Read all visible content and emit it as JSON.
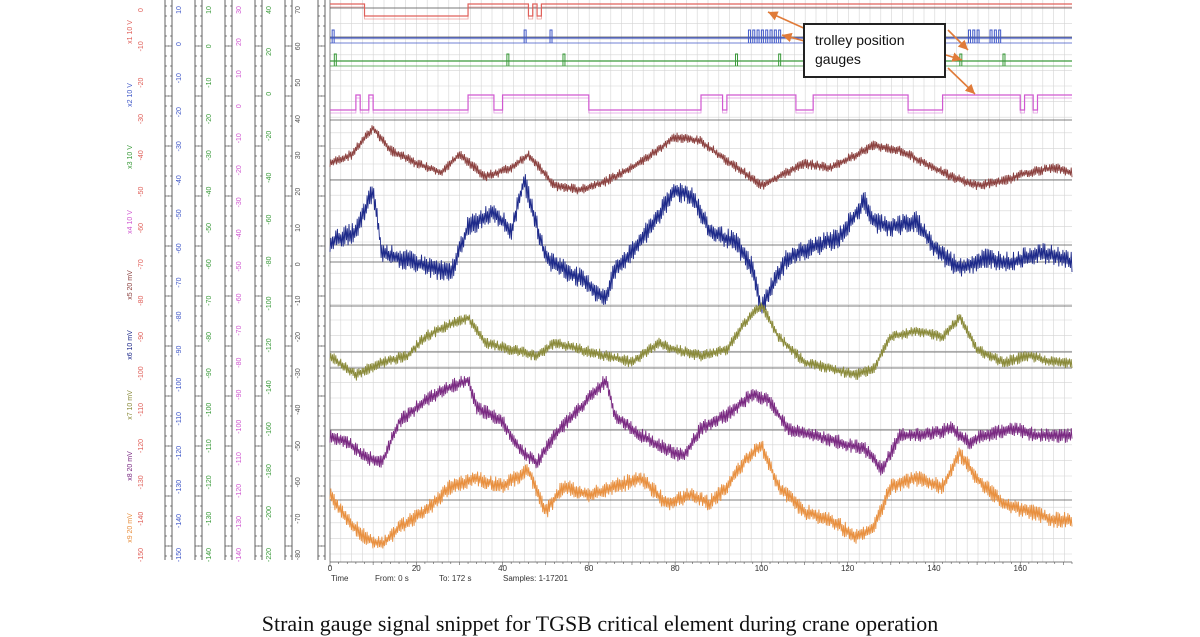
{
  "figure": {
    "callout_text": "trolley position gauges",
    "caption": "Strain gauge signal snippet for TGSB critical element during crane operation"
  },
  "footer": {
    "time_label": "Time",
    "from_label": "From: 0 s",
    "to_label": "To: 172 s",
    "samples_label": "Samples: 1-17201"
  },
  "colors": {
    "callout_arrow": "#e07b39",
    "grid": "#d4d4d4",
    "baseline": "#555555"
  },
  "chart_data": {
    "type": "line",
    "xlabel": "Time",
    "xlim": [
      0,
      172
    ],
    "x_ticks": [
      0,
      20,
      40,
      60,
      80,
      100,
      120,
      140,
      160
    ],
    "series": [
      {
        "name": "x1",
        "unit": "10 V",
        "color": "#e0605a",
        "kind": "step",
        "points": [
          [
            0,
            1
          ],
          [
            8,
            1
          ],
          [
            8,
            0
          ],
          [
            32,
            0
          ],
          [
            32,
            1
          ],
          [
            46,
            1
          ],
          [
            46,
            0
          ],
          [
            47,
            0
          ],
          [
            47,
            1
          ],
          [
            48,
            1
          ],
          [
            48,
            0
          ],
          [
            49,
            0
          ],
          [
            49,
            1
          ],
          [
            172,
            1
          ]
        ]
      },
      {
        "name": "x2",
        "unit": "10 V",
        "color": "#4058c8",
        "kind": "pulses",
        "pulse_times": [
          0.5,
          45,
          51,
          97,
          98,
          99,
          100,
          101,
          102,
          103,
          104,
          148,
          149,
          150,
          153,
          154,
          155
        ]
      },
      {
        "name": "x3",
        "unit": "10 V",
        "color": "#3a9a3a",
        "kind": "pulses",
        "pulse_times": [
          1,
          41,
          54,
          94,
          104,
          146,
          156
        ]
      },
      {
        "name": "x4",
        "unit": "10 V",
        "color": "#d058d0",
        "kind": "step",
        "points": [
          [
            0,
            0
          ],
          [
            6,
            0
          ],
          [
            6,
            1
          ],
          [
            7,
            0
          ],
          [
            9,
            0
          ],
          [
            9,
            1
          ],
          [
            10,
            0
          ],
          [
            32,
            0
          ],
          [
            32,
            1
          ],
          [
            38,
            1
          ],
          [
            38,
            0
          ],
          [
            40,
            0
          ],
          [
            40,
            1
          ],
          [
            60,
            1
          ],
          [
            60,
            0
          ],
          [
            86,
            0
          ],
          [
            86,
            1
          ],
          [
            91,
            0
          ],
          [
            92,
            1
          ],
          [
            107,
            1
          ],
          [
            108,
            0
          ],
          [
            111,
            0
          ],
          [
            112,
            1
          ],
          [
            134,
            1
          ],
          [
            134,
            0
          ],
          [
            141,
            0
          ],
          [
            142,
            1
          ],
          [
            160,
            1
          ],
          [
            160,
            0
          ],
          [
            161,
            1
          ],
          [
            163,
            0
          ],
          [
            164,
            1
          ],
          [
            172,
            1
          ]
        ]
      },
      {
        "name": "x5",
        "unit": "20 mV",
        "color": "#8c4240",
        "points": [
          [
            0,
            0
          ],
          [
            5,
            2
          ],
          [
            10,
            8
          ],
          [
            14,
            3
          ],
          [
            20,
            0
          ],
          [
            26,
            -2
          ],
          [
            30,
            2
          ],
          [
            36,
            -3
          ],
          [
            42,
            -1
          ],
          [
            46,
            2
          ],
          [
            52,
            -5
          ],
          [
            58,
            -6
          ],
          [
            64,
            -4
          ],
          [
            70,
            -1
          ],
          [
            76,
            3
          ],
          [
            80,
            6
          ],
          [
            86,
            5
          ],
          [
            90,
            2
          ],
          [
            96,
            -2
          ],
          [
            100,
            -5
          ],
          [
            104,
            -3
          ],
          [
            110,
            0
          ],
          [
            116,
            -1
          ],
          [
            120,
            1
          ],
          [
            126,
            4
          ],
          [
            132,
            3
          ],
          [
            138,
            0
          ],
          [
            144,
            -3
          ],
          [
            150,
            -5
          ],
          [
            156,
            -4
          ],
          [
            162,
            -2
          ],
          [
            168,
            -1
          ],
          [
            172,
            -2
          ]
        ]
      },
      {
        "name": "x6",
        "unit": "10 mV",
        "color": "#1e2a8a",
        "points": [
          [
            0,
            0
          ],
          [
            6,
            2
          ],
          [
            10,
            10
          ],
          [
            12,
            -2
          ],
          [
            20,
            -4
          ],
          [
            28,
            -6
          ],
          [
            32,
            3
          ],
          [
            38,
            6
          ],
          [
            42,
            2
          ],
          [
            45,
            12
          ],
          [
            50,
            -3
          ],
          [
            58,
            -7
          ],
          [
            64,
            -11
          ],
          [
            66,
            -5
          ],
          [
            70,
            -2
          ],
          [
            76,
            5
          ],
          [
            80,
            10
          ],
          [
            84,
            9
          ],
          [
            88,
            2
          ],
          [
            94,
            0
          ],
          [
            98,
            -5
          ],
          [
            100,
            -13
          ],
          [
            102,
            -9
          ],
          [
            106,
            -3
          ],
          [
            112,
            -1
          ],
          [
            118,
            1
          ],
          [
            124,
            8
          ],
          [
            126,
            4
          ],
          [
            130,
            3
          ],
          [
            136,
            4
          ],
          [
            140,
            -1
          ],
          [
            146,
            -5
          ],
          [
            152,
            -3
          ],
          [
            158,
            -4
          ],
          [
            164,
            -2
          ],
          [
            170,
            -3
          ],
          [
            172,
            -4
          ]
        ]
      },
      {
        "name": "x7",
        "unit": "10 mV",
        "color": "#8a8a3a",
        "points": [
          [
            0,
            0
          ],
          [
            6,
            -3
          ],
          [
            12,
            -1
          ],
          [
            18,
            0
          ],
          [
            22,
            3
          ],
          [
            28,
            5
          ],
          [
            32,
            6
          ],
          [
            36,
            2
          ],
          [
            42,
            1
          ],
          [
            48,
            0
          ],
          [
            52,
            2
          ],
          [
            58,
            1
          ],
          [
            64,
            0
          ],
          [
            70,
            -1
          ],
          [
            76,
            2
          ],
          [
            80,
            1
          ],
          [
            86,
            0
          ],
          [
            92,
            1
          ],
          [
            96,
            5
          ],
          [
            100,
            8
          ],
          [
            104,
            3
          ],
          [
            110,
            -1
          ],
          [
            116,
            -2
          ],
          [
            122,
            -3
          ],
          [
            126,
            -2
          ],
          [
            130,
            3
          ],
          [
            136,
            4
          ],
          [
            142,
            3
          ],
          [
            146,
            6
          ],
          [
            150,
            1
          ],
          [
            156,
            -1
          ],
          [
            162,
            0
          ],
          [
            168,
            -1
          ],
          [
            172,
            -1
          ]
        ]
      },
      {
        "name": "x8",
        "unit": "20 mV",
        "color": "#7a2a82",
        "points": [
          [
            0,
            0
          ],
          [
            4,
            -1
          ],
          [
            8,
            -3
          ],
          [
            12,
            -4
          ],
          [
            16,
            2
          ],
          [
            22,
            5
          ],
          [
            28,
            7
          ],
          [
            32,
            8
          ],
          [
            34,
            4
          ],
          [
            40,
            2
          ],
          [
            44,
            -2
          ],
          [
            48,
            -4
          ],
          [
            52,
            0
          ],
          [
            58,
            4
          ],
          [
            64,
            8
          ],
          [
            66,
            3
          ],
          [
            72,
            0
          ],
          [
            78,
            -2
          ],
          [
            82,
            -3
          ],
          [
            86,
            1
          ],
          [
            92,
            3
          ],
          [
            98,
            6
          ],
          [
            102,
            5
          ],
          [
            106,
            1
          ],
          [
            112,
            0
          ],
          [
            118,
            -1
          ],
          [
            124,
            -2
          ],
          [
            128,
            -5
          ],
          [
            132,
            0
          ],
          [
            138,
            0
          ],
          [
            144,
            1
          ],
          [
            148,
            -1
          ],
          [
            152,
            0
          ],
          [
            158,
            1
          ],
          [
            164,
            0
          ],
          [
            172,
            0
          ]
        ]
      },
      {
        "name": "x9",
        "unit": "20 mV",
        "color": "#e89040",
        "points": [
          [
            0,
            0
          ],
          [
            4,
            -3
          ],
          [
            8,
            -5
          ],
          [
            12,
            -6
          ],
          [
            16,
            -4
          ],
          [
            22,
            -2
          ],
          [
            28,
            1
          ],
          [
            34,
            2
          ],
          [
            40,
            1
          ],
          [
            46,
            3
          ],
          [
            50,
            -2
          ],
          [
            54,
            1
          ],
          [
            60,
            0
          ],
          [
            66,
            1
          ],
          [
            72,
            2
          ],
          [
            78,
            -1
          ],
          [
            84,
            0
          ],
          [
            88,
            -1
          ],
          [
            92,
            1
          ],
          [
            96,
            4
          ],
          [
            100,
            6
          ],
          [
            104,
            1
          ],
          [
            110,
            -2
          ],
          [
            116,
            -3
          ],
          [
            122,
            -5
          ],
          [
            126,
            -4
          ],
          [
            130,
            1
          ],
          [
            136,
            2
          ],
          [
            142,
            1
          ],
          [
            146,
            5
          ],
          [
            150,
            2
          ],
          [
            156,
            -1
          ],
          [
            162,
            -2
          ],
          [
            168,
            -3
          ],
          [
            172,
            -3
          ]
        ]
      }
    ],
    "axis_scales": [
      {
        "name": "x1",
        "unit": "10 V",
        "color": "#e0605a",
        "ticks": [
          0,
          -10,
          -20,
          -30,
          -40,
          -50,
          -60,
          -70,
          -80,
          -90,
          -100,
          -110,
          -120,
          -130,
          -140,
          -150
        ]
      },
      {
        "name": "x2",
        "unit": "10 V",
        "color": "#4058c8",
        "ticks": [
          10,
          0,
          -10,
          -20,
          -30,
          -40,
          -50,
          -60,
          -70,
          -80,
          -90,
          -100,
          -110,
          -120,
          -130,
          -140,
          -150
        ]
      },
      {
        "name": "x3",
        "unit": "10 V",
        "color": "#3a9a3a",
        "ticks": [
          10,
          0,
          -10,
          -20,
          -30,
          -40,
          -50,
          -60,
          -70,
          -80,
          -90,
          -100,
          -110,
          -120,
          -130,
          -140
        ]
      },
      {
        "name": "x4",
        "unit": "10 V",
        "color": "#d058d0",
        "ticks": [
          30,
          20,
          10,
          0,
          -10,
          -20,
          -30,
          -40,
          -50,
          -60,
          -70,
          -80,
          -90,
          -100,
          -110,
          -120,
          -130,
          -140
        ]
      },
      {
        "name": "x5",
        "unit": "20 mV",
        "color": "#3a9a3a",
        "ticks": [
          40,
          20,
          0,
          -20,
          -40,
          -60,
          -80,
          -100,
          -120,
          -140,
          -160,
          -180,
          -200,
          -220
        ]
      },
      {
        "name": "x6",
        "unit": "10 mV",
        "color": "#555555",
        "ticks": [
          70,
          60,
          50,
          40,
          30,
          20,
          10,
          0,
          -10,
          -20,
          -30,
          -40,
          -50,
          -60,
          -70,
          -80
        ]
      },
      {
        "name": "x7",
        "unit": "10 mV",
        "color": "#555555",
        "ticks": [
          100,
          80,
          60,
          40,
          20,
          0,
          -20,
          -40,
          -60,
          -80,
          -100,
          -120
        ]
      },
      {
        "name": "x8",
        "unit": "20 mV",
        "color": "#555555",
        "ticks": [
          120,
          100,
          80,
          60,
          40,
          20,
          0,
          -20,
          -40,
          -60,
          -80,
          -100,
          -120,
          -140,
          -160,
          -180,
          -200
        ]
      },
      {
        "name": "x9",
        "unit": "20 mV",
        "color": "#555555",
        "ticks": [
          200,
          180,
          160,
          140,
          120,
          100,
          80,
          60,
          40,
          20,
          0,
          -20,
          -40,
          -60,
          -80,
          -100,
          -120,
          -140,
          -160,
          -180,
          -200,
          -220
        ]
      }
    ],
    "grid": true,
    "legend": "none"
  }
}
